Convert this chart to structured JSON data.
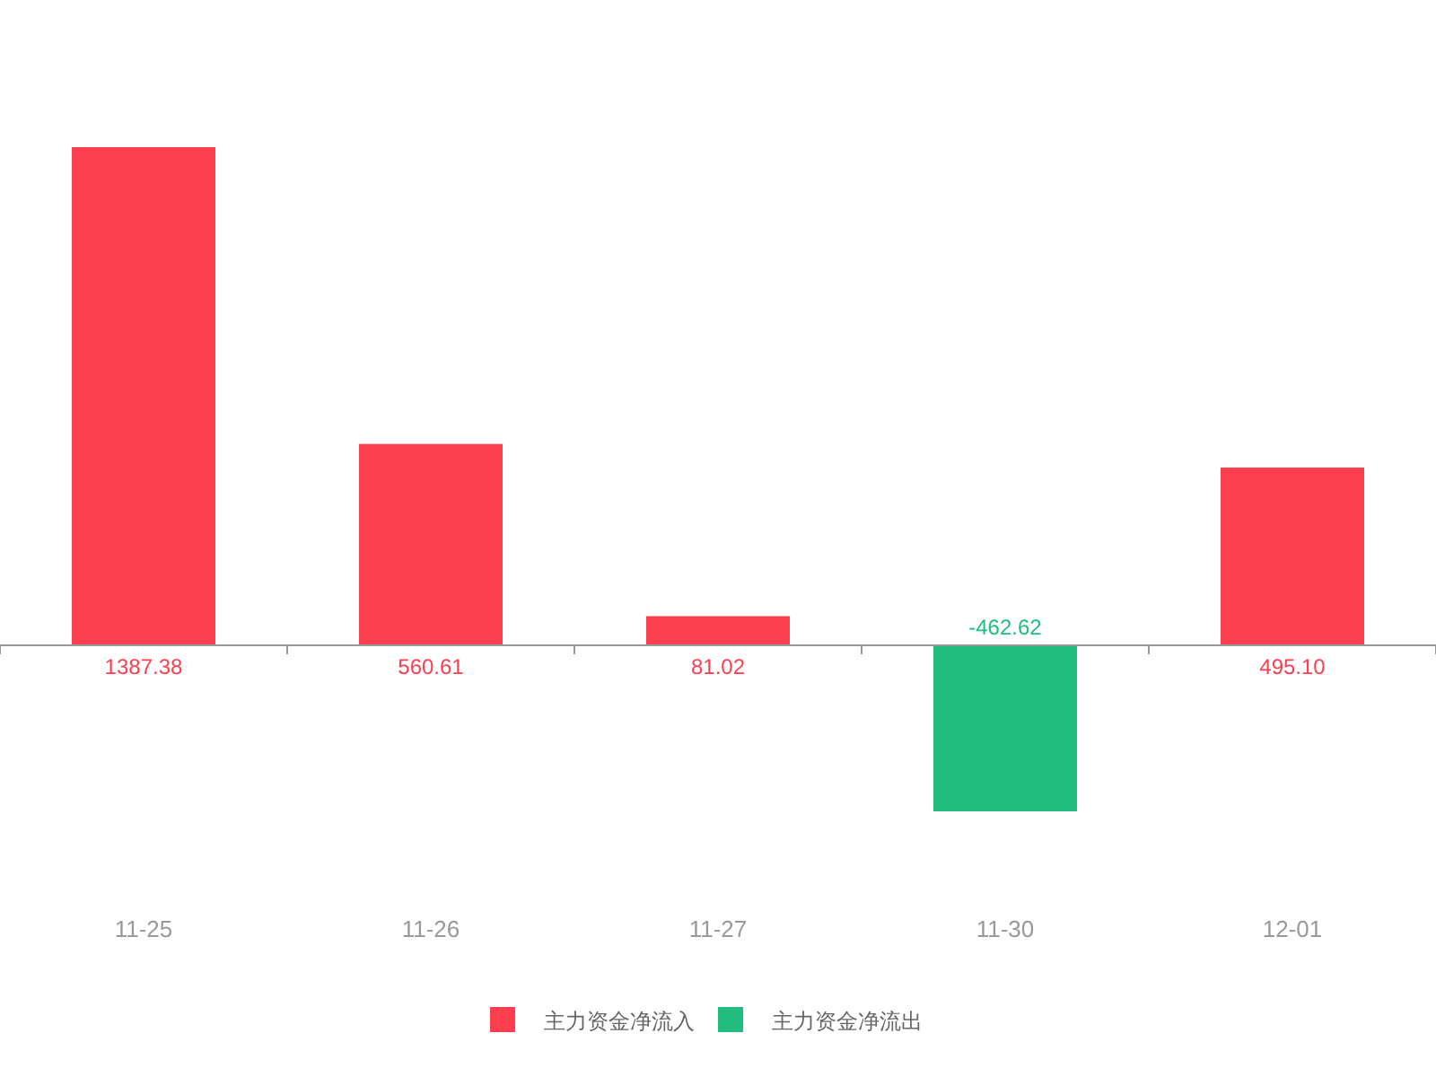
{
  "chart_data": {
    "type": "bar",
    "stacked": true,
    "legend": "bottom",
    "categories": [
      "11-25",
      "11-26",
      "11-27",
      "11-30",
      "12-01"
    ],
    "series": [
      {
        "name": "主力资金净流入",
        "color": "#fc3f4f",
        "values": [
          1387.38,
          560.61,
          81.02,
          null,
          495.1
        ],
        "value_labels": [
          "1387.38",
          "560.61",
          "81.02",
          null,
          "495.10"
        ]
      },
      {
        "name": "主力资金净流出",
        "color": "#20bd7e",
        "values": [
          null,
          null,
          null,
          -462.62,
          null
        ],
        "value_labels": [
          null,
          null,
          null,
          "-462.62",
          null
        ]
      }
    ]
  }
}
